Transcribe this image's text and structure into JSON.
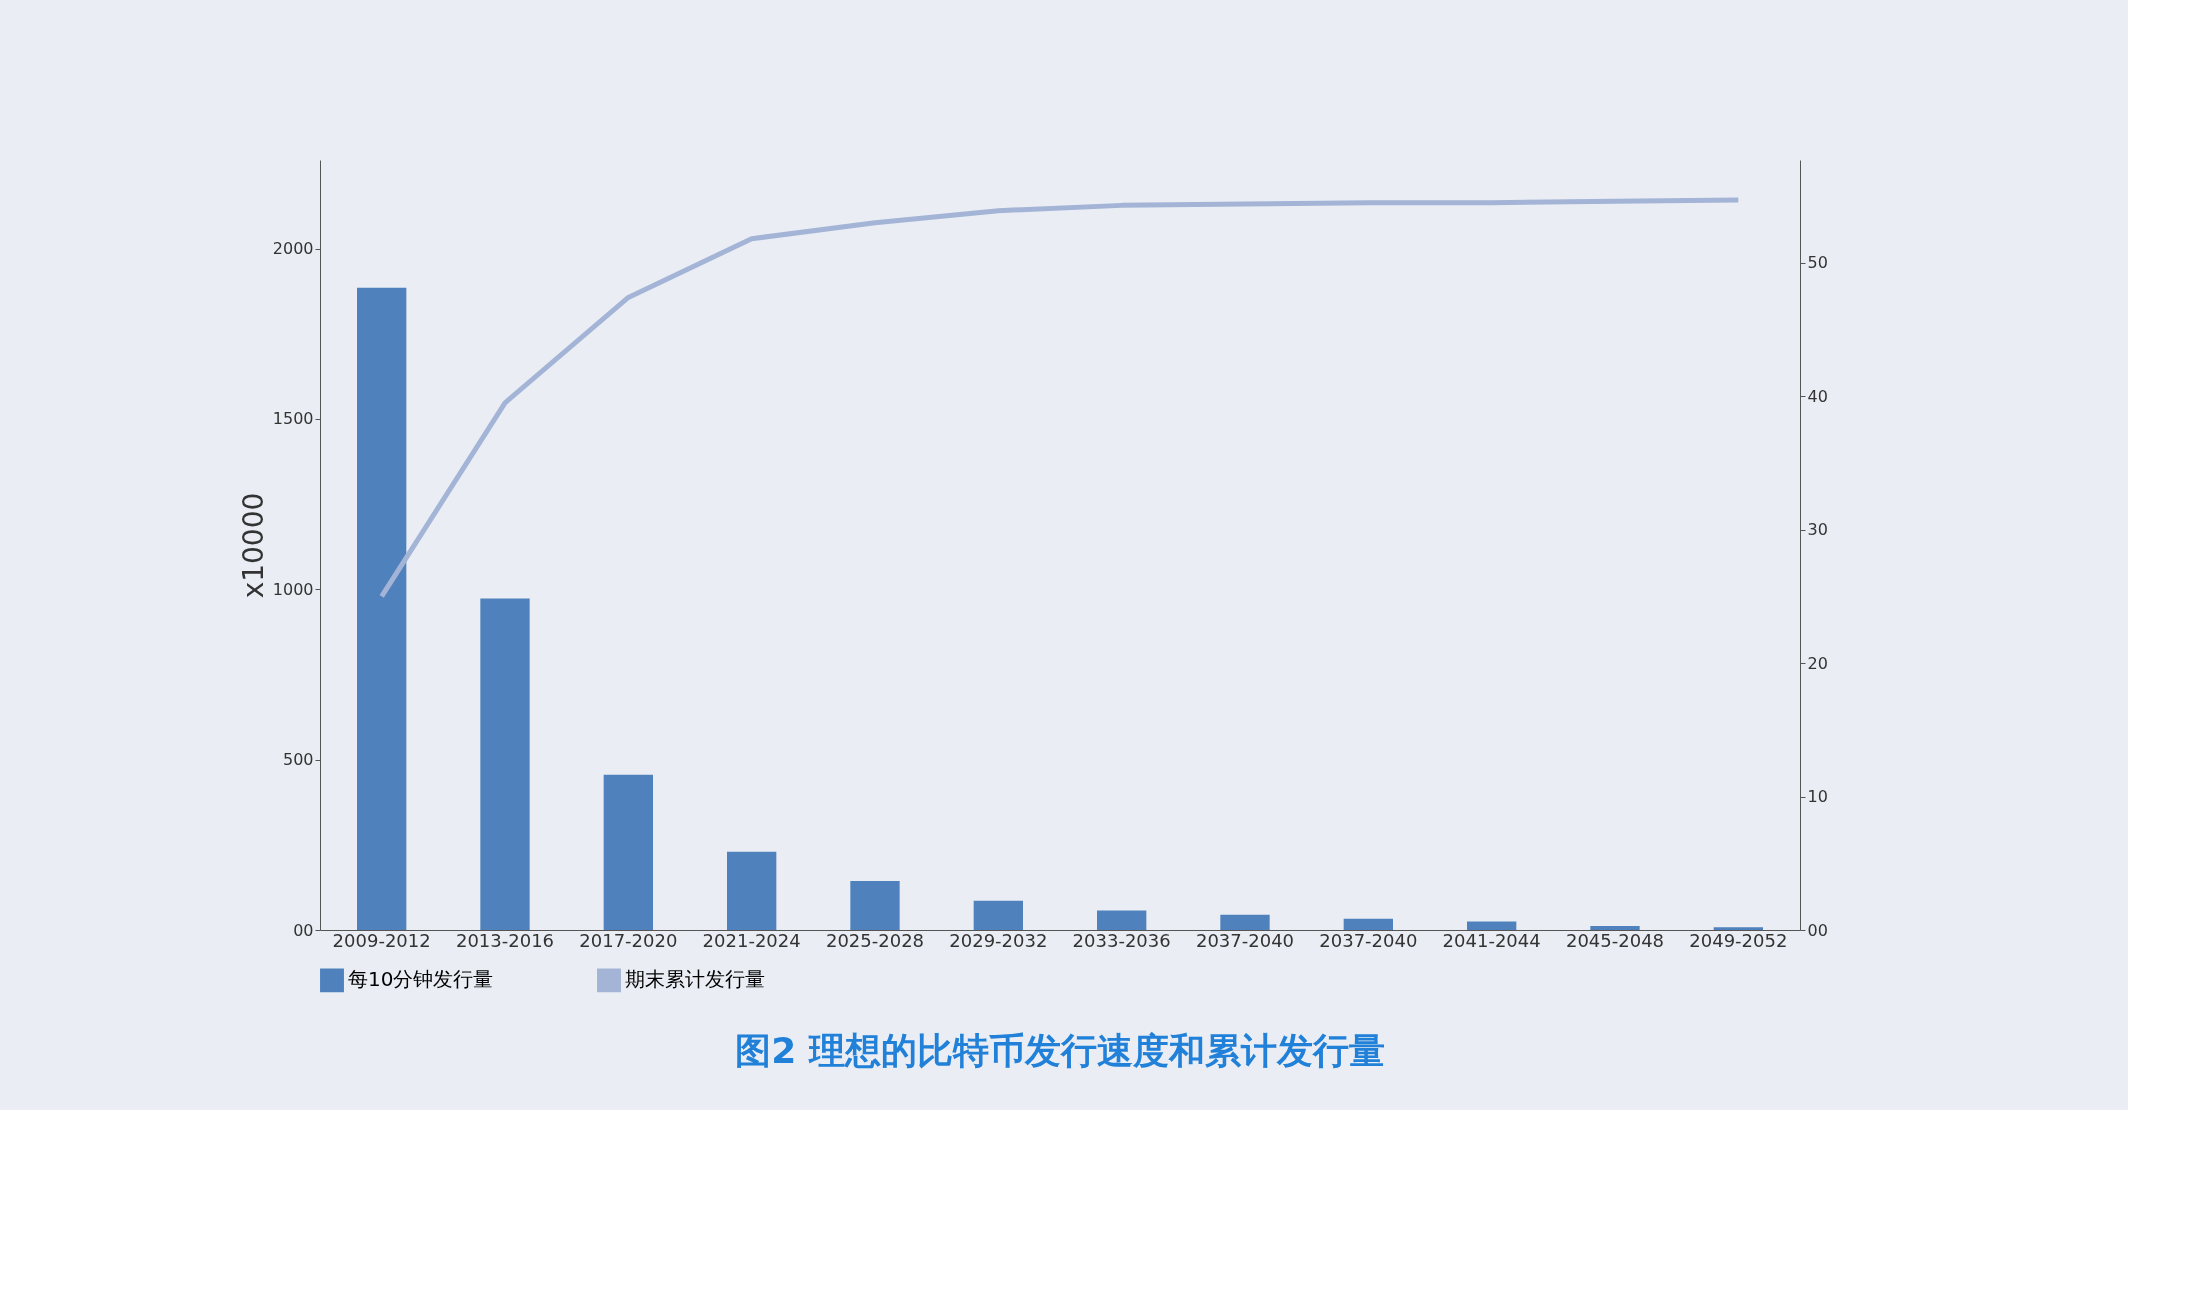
{
  "chart_data": {
    "type": "bar",
    "title": "图2 理想的比特币发行速度和累计发行量",
    "ylabel": "x10000",
    "categories": [
      "2009-2012",
      "2013-2016",
      "2017-2020",
      "2021-2024",
      "2025-2028",
      "2029-2032",
      "2033-2036",
      "2037-2040",
      "2037-2040",
      "2041-2044",
      "2045-2048",
      "2049-2052"
    ],
    "series": [
      {
        "name": "每10分钟发行量",
        "color": "#4f81bd",
        "values": [
          1885,
          973,
          456,
          230,
          144,
          86,
          57,
          45,
          33,
          25,
          12,
          8
        ]
      },
      {
        "name": "期末累计发行量",
        "type": "line",
        "axis": "y2",
        "color": "#a3b4d6",
        "values": [
          25,
          39.5,
          47.4,
          51.8,
          53.0,
          53.9,
          54.3,
          54.4,
          54.5,
          54.5,
          54.6,
          54.7
        ]
      }
    ],
    "ylim": [
      0,
      2260
    ],
    "yticks": [
      {
        "value": 0,
        "label": "00"
      },
      500,
      1000,
      1500,
      2000
    ],
    "y2lim": [
      0,
      57.7
    ],
    "y2ticks": [
      {
        "value": 0,
        "label": "00"
      },
      10,
      20,
      30,
      40,
      50
    ],
    "legend": "bottom",
    "grid": false
  }
}
